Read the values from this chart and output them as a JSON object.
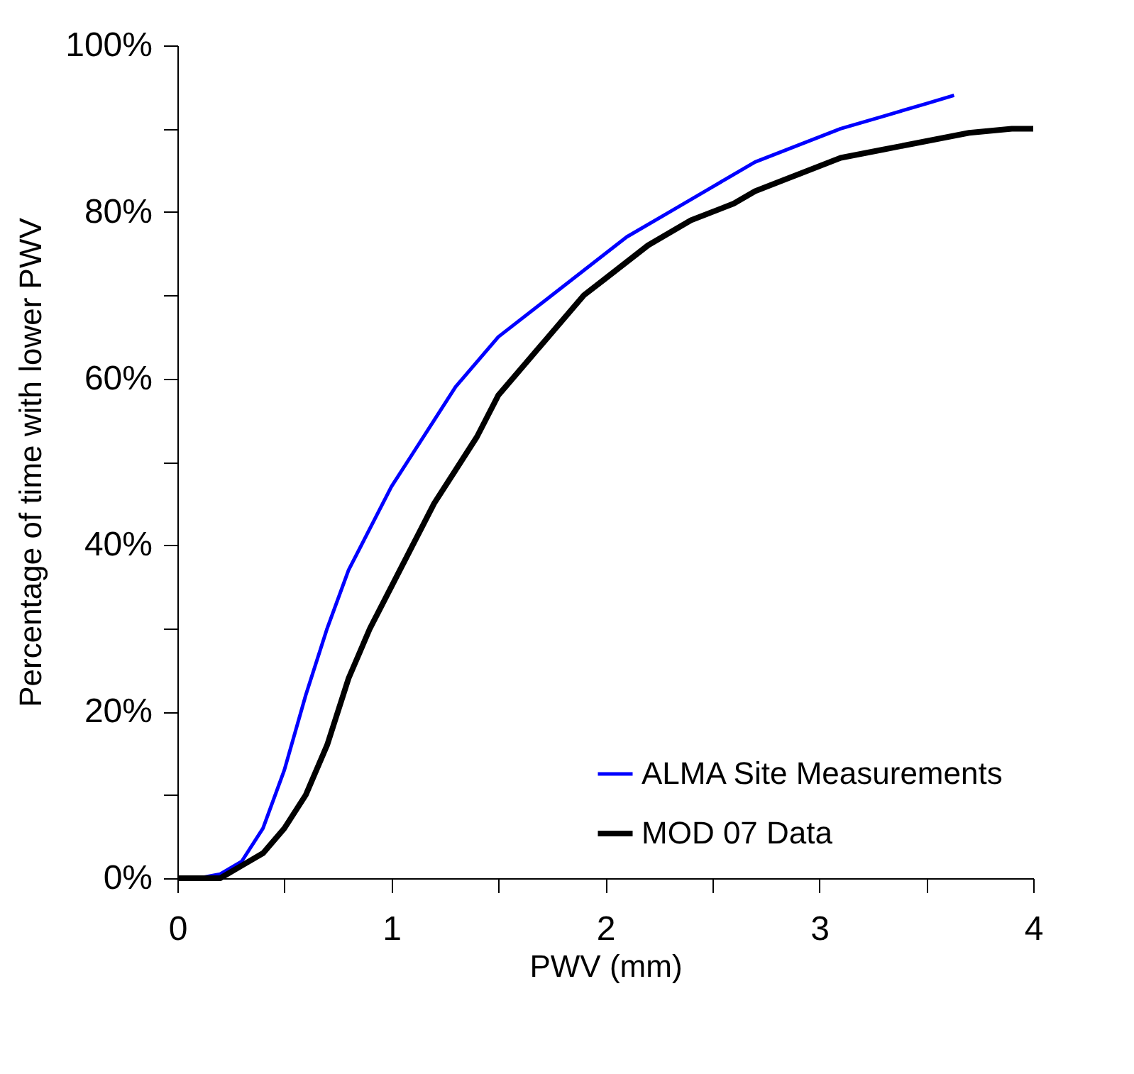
{
  "chart_data": {
    "type": "line",
    "xlabel": "PWV (mm)",
    "ylabel": "Percentage of time with lower PWV",
    "xlim": [
      0,
      4
    ],
    "ylim": [
      0,
      100
    ],
    "xticks": [
      0,
      {
        "value": 0.5,
        "label": null
      },
      1,
      {
        "value": 1.5,
        "label": null
      },
      2,
      {
        "value": 2.5,
        "label": null
      },
      3,
      {
        "value": 3.5,
        "label": null
      },
      4
    ],
    "yticks": [
      {
        "value": 0,
        "label": "0%"
      },
      {
        "value": 10,
        "label": null
      },
      {
        "value": 20,
        "label": "20%"
      },
      {
        "value": 30,
        "label": null
      },
      {
        "value": 40,
        "label": "40%"
      },
      {
        "value": 50,
        "label": null
      },
      {
        "value": 60,
        "label": "60%"
      },
      {
        "value": 70,
        "label": null
      },
      {
        "value": 80,
        "label": "80%"
      },
      {
        "value": 90,
        "label": null
      },
      {
        "value": 100,
        "label": "100%"
      }
    ],
    "grid": false,
    "legend": "bottom right",
    "line_style": "solid",
    "series": [
      {
        "name": "ALMA Site Measurements",
        "color": "#0000ff",
        "x": [
          0,
          0.1,
          0.2,
          0.3,
          0.4,
          0.5,
          0.6,
          0.7,
          0.8,
          0.9,
          1.0,
          1.1,
          1.2,
          1.3,
          1.4,
          1.5,
          1.7,
          1.9,
          2.1,
          2.3,
          2.5,
          2.7,
          2.9,
          3.1,
          3.3,
          3.5,
          3.63
        ],
        "values": [
          0,
          0,
          0.5,
          2,
          6,
          13,
          22,
          30,
          37,
          42,
          47,
          51,
          55,
          59,
          62,
          65,
          69,
          73,
          77,
          80,
          83,
          86,
          88,
          90,
          91.5,
          93,
          94
        ]
      },
      {
        "name": "MOD 07 Data",
        "color": "#000000",
        "x": [
          0,
          0.2,
          0.3,
          0.4,
          0.5,
          0.6,
          0.7,
          0.8,
          0.9,
          1.0,
          1.1,
          1.2,
          1.3,
          1.4,
          1.5,
          1.6,
          1.7,
          1.8,
          1.9,
          2.0,
          2.2,
          2.4,
          2.6,
          2.7,
          2.9,
          3.1,
          3.3,
          3.5,
          3.7,
          3.9,
          4.0
        ],
        "values": [
          0,
          0,
          1.5,
          3,
          6,
          10,
          16,
          24,
          30,
          35,
          40,
          45,
          49,
          53,
          58,
          61,
          64,
          67,
          70,
          72,
          76,
          79,
          81,
          82.5,
          84.5,
          86.5,
          87.5,
          88.5,
          89.5,
          90,
          90
        ]
      }
    ]
  }
}
